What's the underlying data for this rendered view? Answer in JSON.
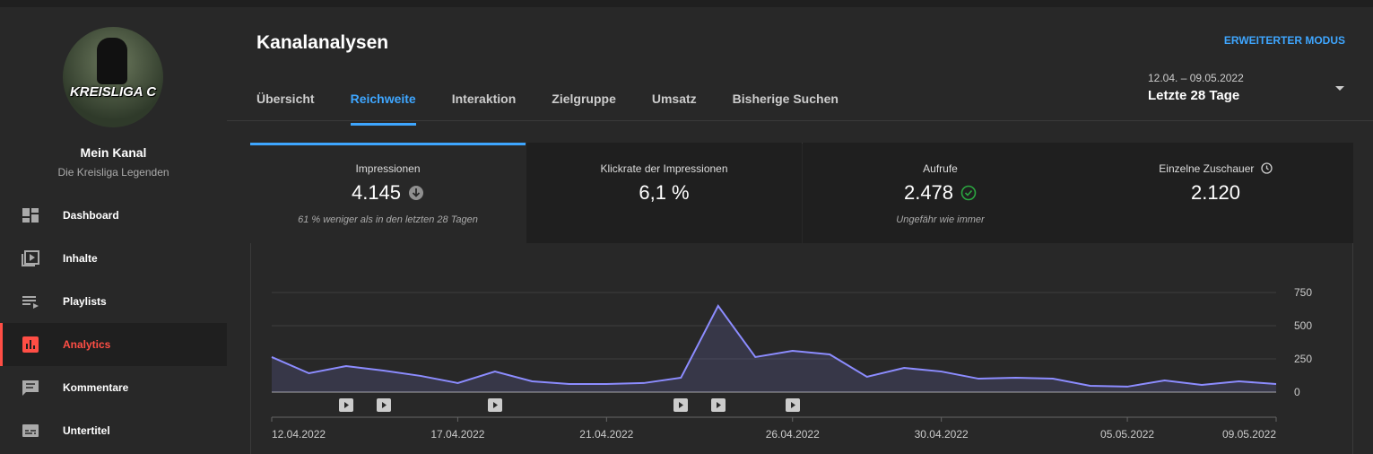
{
  "sidebar": {
    "avatar_text": "KREISLIGA C",
    "channel_title": "Mein Kanal",
    "channel_name": "Die Kreisliga Legenden",
    "nav": [
      "Dashboard",
      "Inhalte",
      "Playlists",
      "Analytics",
      "Kommentare",
      "Untertitel"
    ]
  },
  "header": {
    "title": "Kanalanalysen",
    "advanced_mode": "ERWEITERTER MODUS",
    "date_range": "12.04. – 09.05.2022",
    "period": "Letzte 28 Tage"
  },
  "tabs": [
    "Übersicht",
    "Reichweite",
    "Interaktion",
    "Zielgruppe",
    "Umsatz",
    "Bisherige Suchen"
  ],
  "metrics": [
    {
      "label": "Impressionen",
      "value": "4.145",
      "note": "61 % weniger als in den letzten 28 Tagen"
    },
    {
      "label": "Klickrate der Impressionen",
      "value": "6,1 %"
    },
    {
      "label": "Aufrufe",
      "value": "2.478",
      "note": "Ungefähr wie immer"
    },
    {
      "label": "Einzelne Zuschauer",
      "value": "2.120"
    }
  ],
  "chart_data": {
    "type": "area",
    "categories": [
      "12.04.2022",
      null,
      null,
      null,
      null,
      "17.04.2022",
      null,
      null,
      null,
      "21.04.2022",
      null,
      null,
      null,
      null,
      "26.04.2022",
      null,
      null,
      null,
      "30.04.2022",
      null,
      null,
      null,
      null,
      "05.05.2022",
      null,
      null,
      null,
      "09.05.2022"
    ],
    "series": [
      {
        "color": "#8c8cff",
        "values": [
          264,
          142,
          196,
          162,
          122,
          68,
          155,
          81,
          61,
          61,
          68,
          108,
          649,
          264,
          311,
          284,
          115,
          182,
          155,
          101,
          108,
          101,
          47,
          41,
          88,
          54,
          81,
          61
        ]
      }
    ],
    "ylim": [
      0,
      750
    ],
    "yticks": [
      0,
      250,
      500,
      750
    ],
    "grid": true
  }
}
